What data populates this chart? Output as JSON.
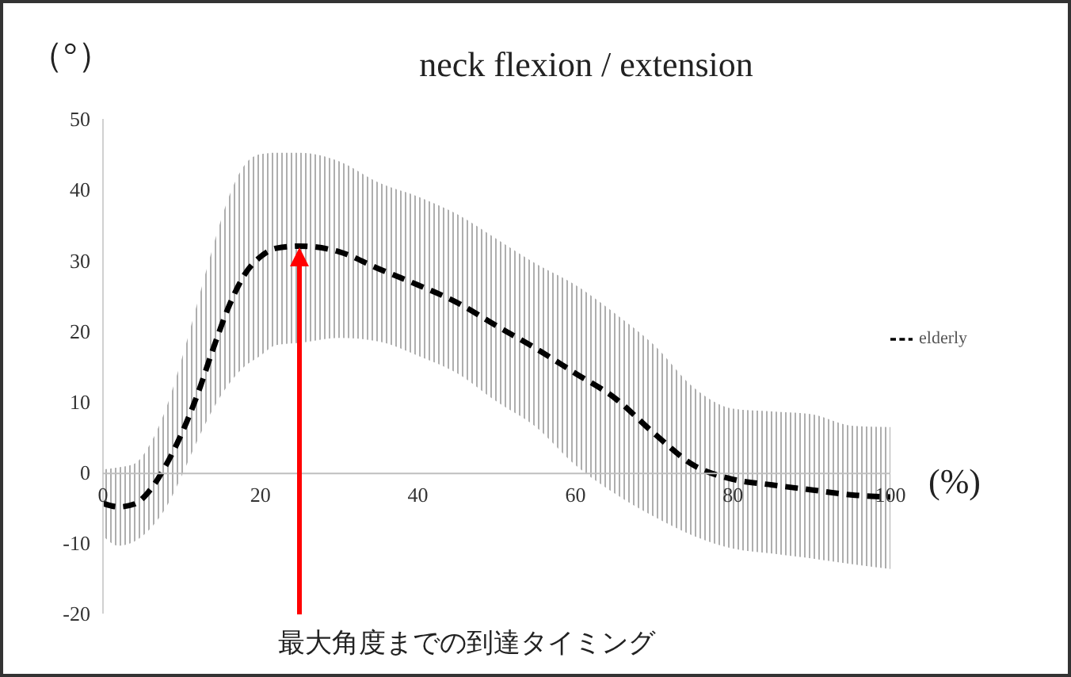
{
  "chart_data": {
    "type": "line",
    "title": "neck flexion / extension",
    "ylabel": "（°）",
    "xlabel": "(%)",
    "x": [
      0,
      2,
      4,
      6,
      8,
      10,
      12,
      14,
      16,
      18,
      20,
      22,
      25,
      30,
      35,
      40,
      45,
      50,
      55,
      60,
      65,
      70,
      75,
      80,
      85,
      90,
      95,
      100
    ],
    "series": [
      {
        "name": "elderly",
        "color": "#000000",
        "values": [
          -4.4,
          -4.9,
          -4.5,
          -2.5,
          1,
          5.5,
          11,
          17.5,
          23.5,
          28,
          30.5,
          31.7,
          32,
          31.2,
          28.8,
          26.5,
          24,
          20.7,
          17.5,
          14,
          10.5,
          5.5,
          1,
          -1,
          -1.8,
          -2.5,
          -3.2,
          -3.5
        ],
        "lower": [
          -9,
          -10.4,
          -9.8,
          -8,
          -5,
          -0.5,
          4.5,
          9,
          12.5,
          15,
          16.5,
          18,
          18.3,
          19,
          18.5,
          16.5,
          14,
          10,
          6.4,
          1,
          -3,
          -6.3,
          -9,
          -10.8,
          -11.5,
          -12.2,
          -13,
          -13.7
        ],
        "upper": [
          0.4,
          0.7,
          1.2,
          4,
          9,
          16,
          24,
          32,
          39,
          43.5,
          45,
          45.2,
          45.2,
          44,
          41,
          39,
          36.5,
          33,
          29.5,
          26.5,
          22.5,
          18,
          12,
          9,
          8.6,
          8.2,
          6.6,
          6.4
        ]
      }
    ],
    "xlim": [
      0,
      100
    ],
    "xticks": [
      0,
      20,
      40,
      60,
      80,
      100
    ],
    "ylim": [
      -20,
      50
    ],
    "yticks": [
      -20,
      -10,
      0,
      10,
      20,
      30,
      40,
      50
    ],
    "legend": "right",
    "marker": "none",
    "line_style": "dashed",
    "annotations": [
      "最大角度までの到達タイミング"
    ]
  }
}
